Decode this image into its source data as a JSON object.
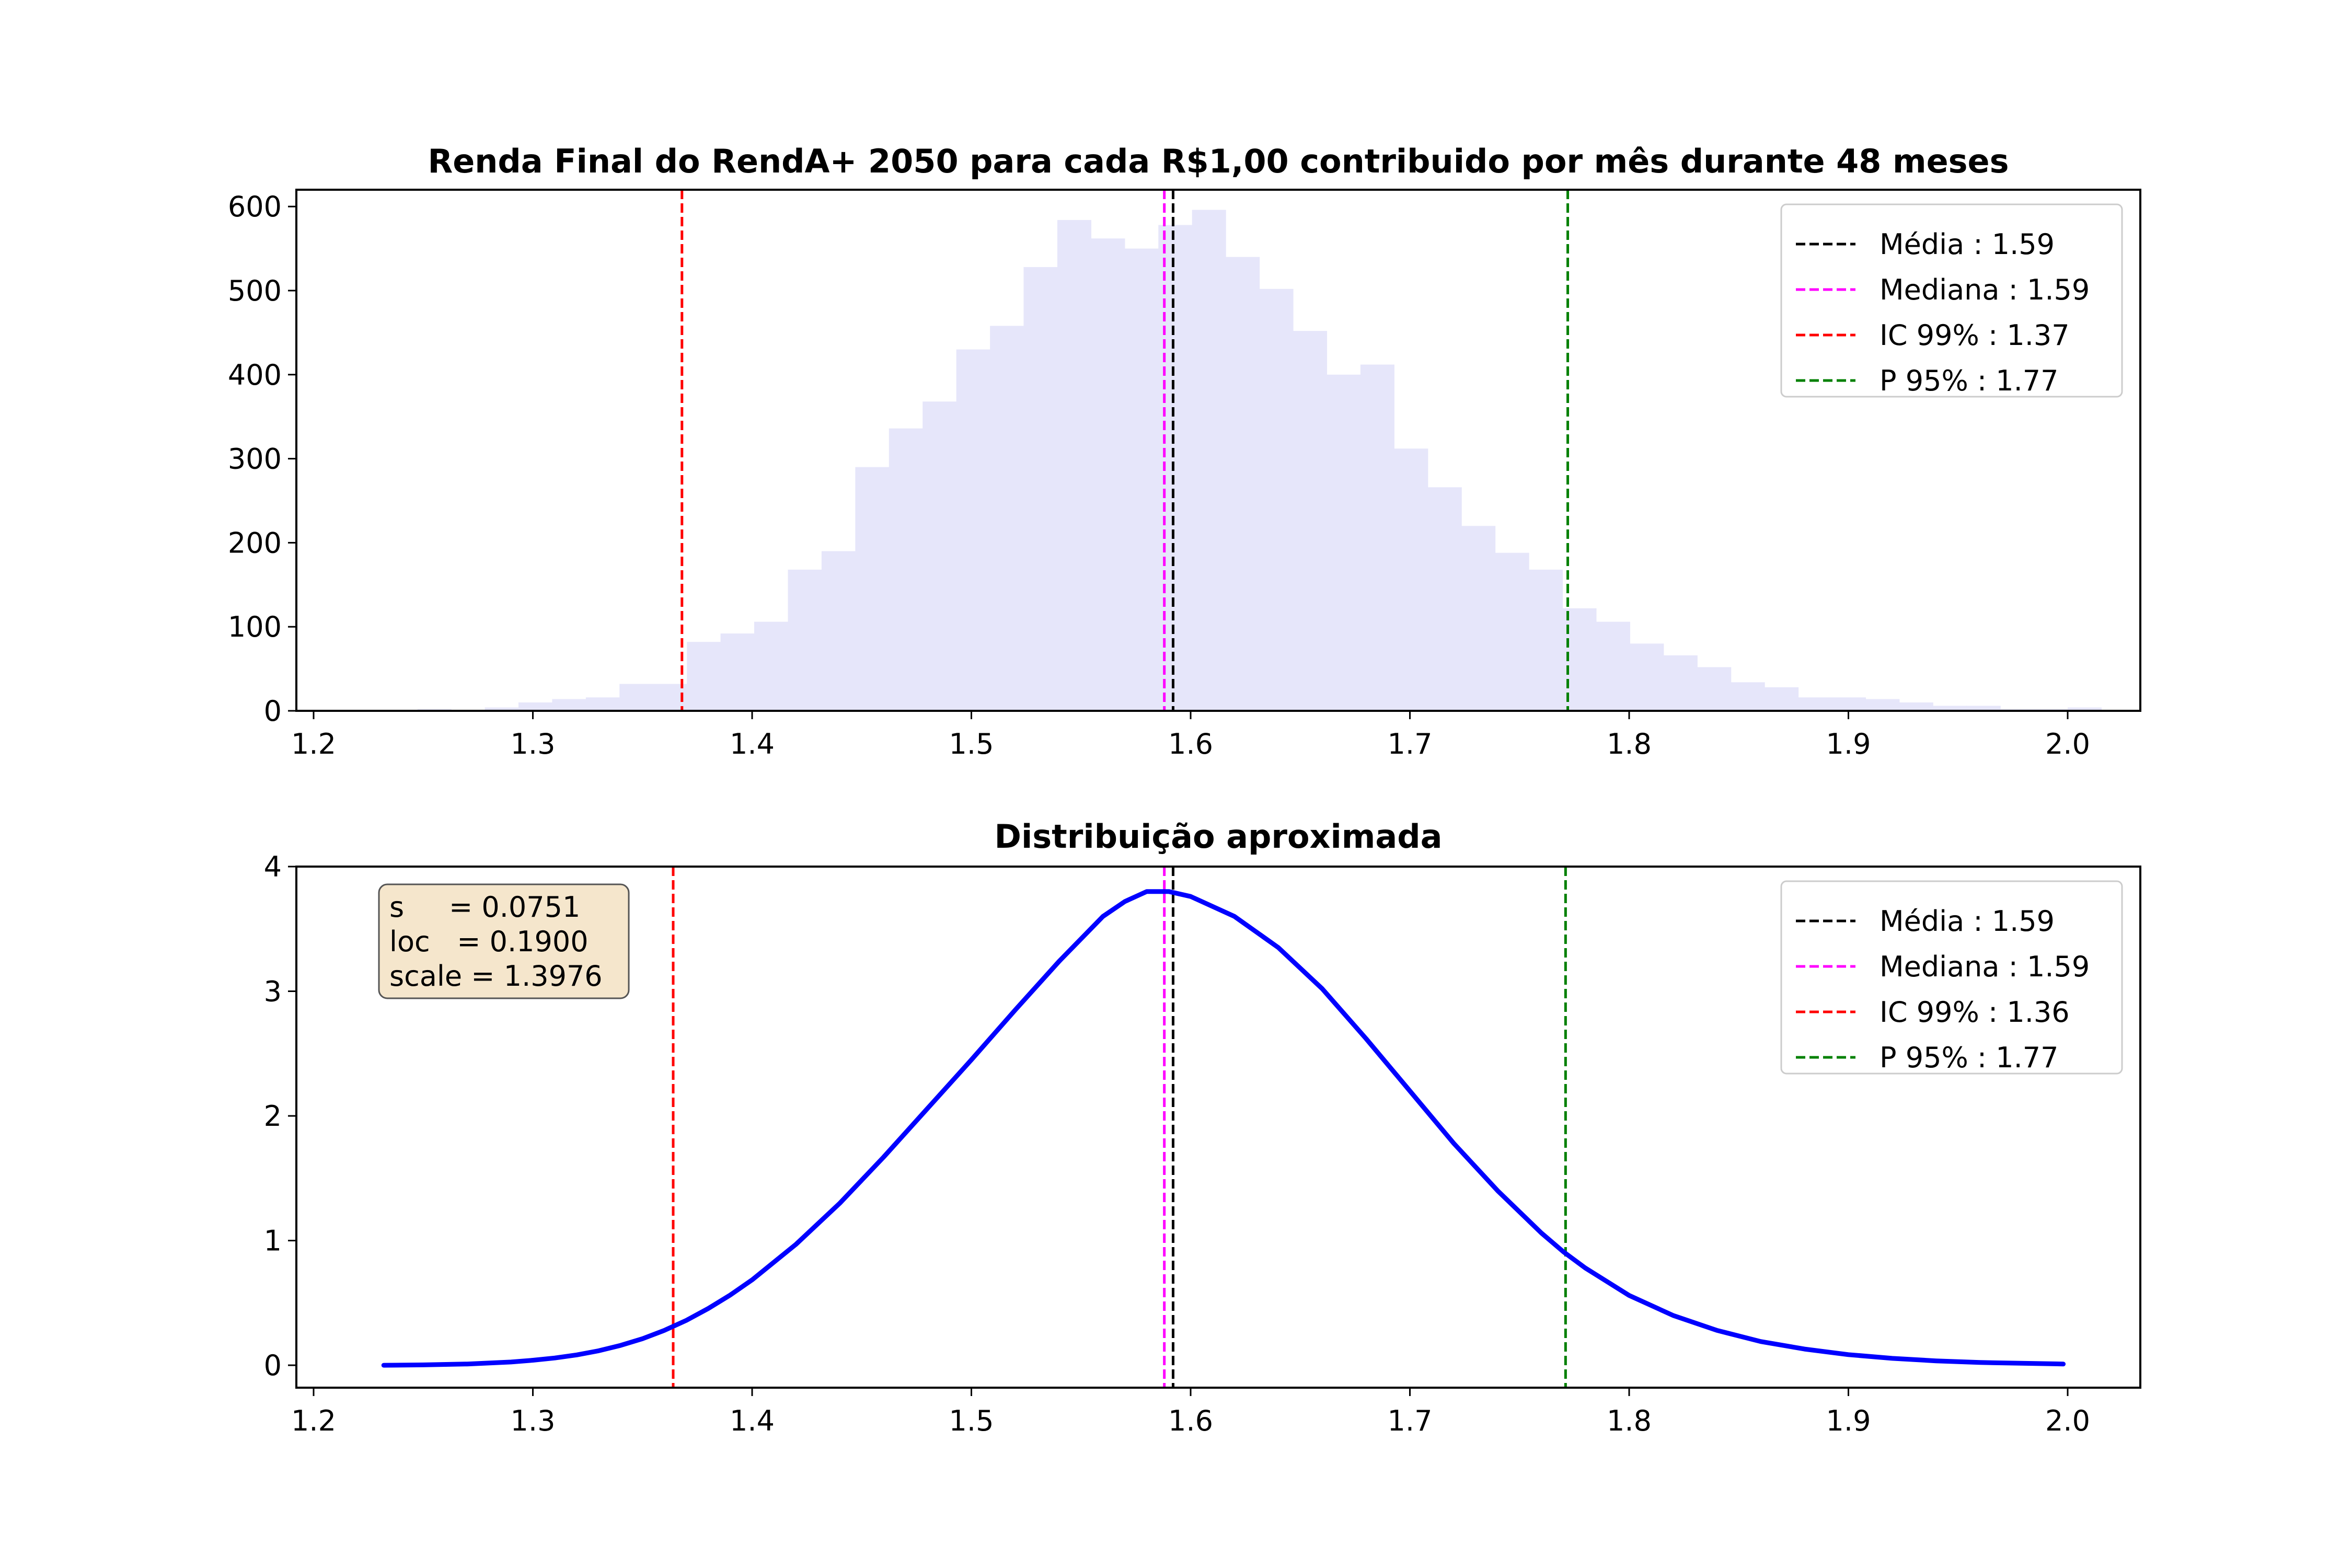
{
  "chart_data": [
    {
      "type": "bar",
      "title": "Renda Final do RendA+ 2050 para cada R$1,00 contribuido por mês durante 48 meses",
      "xlim": [
        1.2,
        2.0
      ],
      "ylim": [
        0,
        620
      ],
      "xticks": [
        "1.2",
        "1.3",
        "1.4",
        "1.5",
        "1.6",
        "1.7",
        "1.8",
        "1.9",
        "2.0"
      ],
      "yticks": [
        "0",
        "100",
        "200",
        "300",
        "400",
        "500",
        "600"
      ],
      "bar_color": "#e6e6fa",
      "bin_start": 1.232,
      "bin_width": 0.01536,
      "values": [
        1,
        2,
        1,
        4,
        10,
        14,
        16,
        32,
        32,
        82,
        92,
        106,
        168,
        190,
        290,
        336,
        368,
        430,
        458,
        528,
        584,
        562,
        550,
        578,
        596,
        540,
        502,
        452,
        400,
        412,
        312,
        266,
        220,
        188,
        168,
        122,
        106,
        80,
        66,
        52,
        34,
        28,
        16,
        16,
        14,
        10,
        6,
        6,
        2,
        2,
        4,
        1
      ],
      "vlines": [
        {
          "label": "Média : 1.59",
          "x": 1.592,
          "color": "#000000"
        },
        {
          "label": "Mediana : 1.59",
          "x": 1.588,
          "color": "#ff00ff"
        },
        {
          "label": "IC 99% : 1.37",
          "x": 1.368,
          "color": "#ff0000"
        },
        {
          "label": "P 95% : 1.77",
          "x": 1.772,
          "color": "#008000"
        }
      ],
      "legend": "top-right"
    },
    {
      "type": "line",
      "title": "Distribuição aproximada",
      "xlim": [
        1.2,
        2.0
      ],
      "ylim": [
        -0.18,
        4.0
      ],
      "xticks": [
        "1.2",
        "1.3",
        "1.4",
        "1.5",
        "1.6",
        "1.7",
        "1.8",
        "1.9",
        "2.0"
      ],
      "yticks": [
        "0",
        "1",
        "2",
        "3",
        "4"
      ],
      "series": [
        {
          "color": "#0000ff",
          "x": [
            1.232,
            1.25,
            1.27,
            1.29,
            1.3,
            1.31,
            1.32,
            1.33,
            1.34,
            1.35,
            1.36,
            1.37,
            1.38,
            1.39,
            1.4,
            1.42,
            1.44,
            1.46,
            1.48,
            1.5,
            1.52,
            1.54,
            1.56,
            1.57,
            1.58,
            1.59,
            1.6,
            1.62,
            1.64,
            1.66,
            1.68,
            1.7,
            1.72,
            1.74,
            1.76,
            1.77,
            1.78,
            1.8,
            1.82,
            1.84,
            1.86,
            1.88,
            1.9,
            1.92,
            1.94,
            1.96,
            1.998
          ],
          "y": [
            0.0,
            0.003,
            0.01,
            0.026,
            0.04,
            0.058,
            0.083,
            0.116,
            0.159,
            0.213,
            0.28,
            0.36,
            0.455,
            0.563,
            0.685,
            0.97,
            1.3,
            1.67,
            2.06,
            2.45,
            2.85,
            3.24,
            3.6,
            3.72,
            3.8,
            3.8,
            3.76,
            3.6,
            3.35,
            3.02,
            2.62,
            2.2,
            1.78,
            1.4,
            1.06,
            0.91,
            0.78,
            0.56,
            0.4,
            0.28,
            0.19,
            0.13,
            0.085,
            0.055,
            0.035,
            0.022,
            0.01
          ]
        }
      ],
      "vlines": [
        {
          "label": "Média : 1.59",
          "x": 1.592,
          "color": "#000000"
        },
        {
          "label": "Mediana : 1.59",
          "x": 1.588,
          "color": "#ff00ff"
        },
        {
          "label": "IC 99% : 1.36",
          "x": 1.364,
          "color": "#ff0000"
        },
        {
          "label": "P 95% : 1.77",
          "x": 1.771,
          "color": "#008000"
        }
      ],
      "legend": "top-right",
      "annotation": [
        "s     = 0.0751",
        "loc   = 0.1900",
        "scale = 1.3976"
      ],
      "annotation_bg": "#f5e6cc"
    }
  ]
}
